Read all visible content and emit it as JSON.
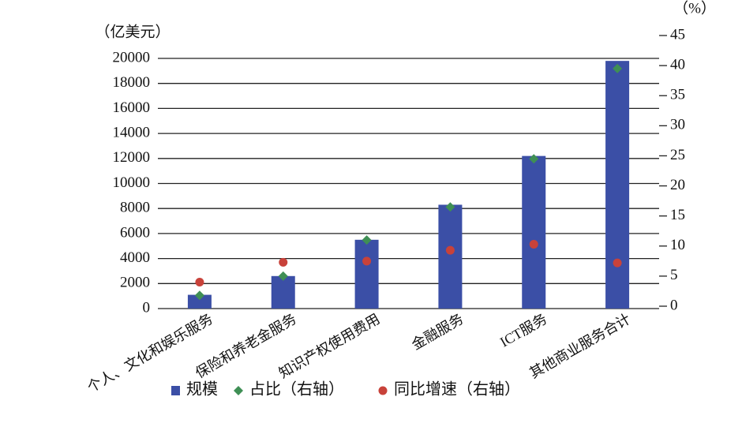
{
  "chart_data": {
    "type": "combo",
    "y_label": "（亿美元）",
    "y2_label": "（%）",
    "categories": [
      "个人、文化和娱乐服务",
      "保险和养老金服务",
      "知识产权使用费用",
      "金融服务",
      "ICT服务",
      "其他商业服务合计"
    ],
    "series": [
      {
        "name": "规模",
        "type": "bar",
        "color": "#3b4fa6",
        "values": [
          1100,
          2600,
          5500,
          8300,
          12200,
          19800
        ]
      },
      {
        "name": "占比（右轴）",
        "type": "scatter",
        "marker": "diamond",
        "axis": "y2",
        "color": "#3f8f55",
        "values": [
          1.8,
          5.0,
          11.0,
          16.5,
          24.5,
          39.5
        ]
      },
      {
        "name": "同比增速（右轴）",
        "type": "scatter",
        "marker": "circle",
        "axis": "y2",
        "color": "#c8423a",
        "values": [
          4.0,
          7.3,
          7.5,
          9.3,
          10.3,
          7.2
        ]
      }
    ],
    "ylim": [
      0,
      20000
    ],
    "yticks": [
      0,
      2000,
      4000,
      6000,
      8000,
      10000,
      12000,
      14000,
      16000,
      18000,
      20000
    ],
    "y2lim": [
      0,
      45
    ],
    "y2ticks": [
      0,
      5,
      10,
      15,
      20,
      25,
      30,
      35,
      40,
      45
    ],
    "grid": true
  }
}
